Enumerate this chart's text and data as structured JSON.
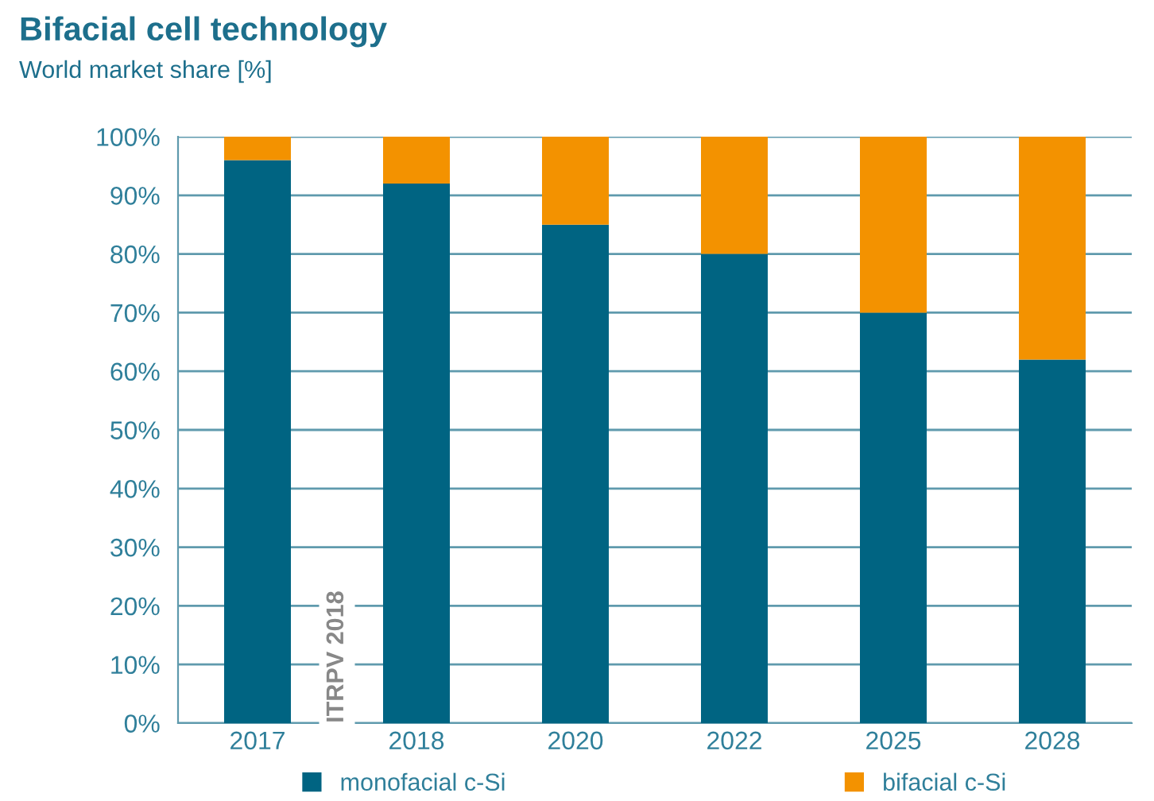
{
  "chart_data": {
    "type": "bar",
    "title": "Bifacial cell technology",
    "subtitle": "World market share [%]",
    "categories": [
      "2017",
      "2018",
      "2020",
      "2022",
      "2025",
      "2028"
    ],
    "stacked": true,
    "series": [
      {
        "name": "monofacial c-Si",
        "color": "#006482",
        "values": [
          96,
          92,
          85,
          80,
          70,
          62
        ]
      },
      {
        "name": "bifacial c-Si",
        "color": "#f39200",
        "values": [
          4,
          8,
          15,
          20,
          30,
          38
        ]
      }
    ],
    "ylim": [
      0,
      100
    ],
    "yticks": [
      {
        "value": 0,
        "label": "0%"
      },
      {
        "value": 10,
        "label": "10%"
      },
      {
        "value": 20,
        "label": "20%"
      },
      {
        "value": 30,
        "label": "30%"
      },
      {
        "value": 40,
        "label": "40%"
      },
      {
        "value": 50,
        "label": "50%"
      },
      {
        "value": 60,
        "label": "60%"
      },
      {
        "value": 70,
        "label": "70%"
      },
      {
        "value": 80,
        "label": "80%"
      },
      {
        "value": 90,
        "label": "90%"
      },
      {
        "value": 100,
        "label": "100%"
      }
    ],
    "grid": "y",
    "legend": "bottom",
    "annotations": [
      "ITRPV 2018"
    ]
  }
}
